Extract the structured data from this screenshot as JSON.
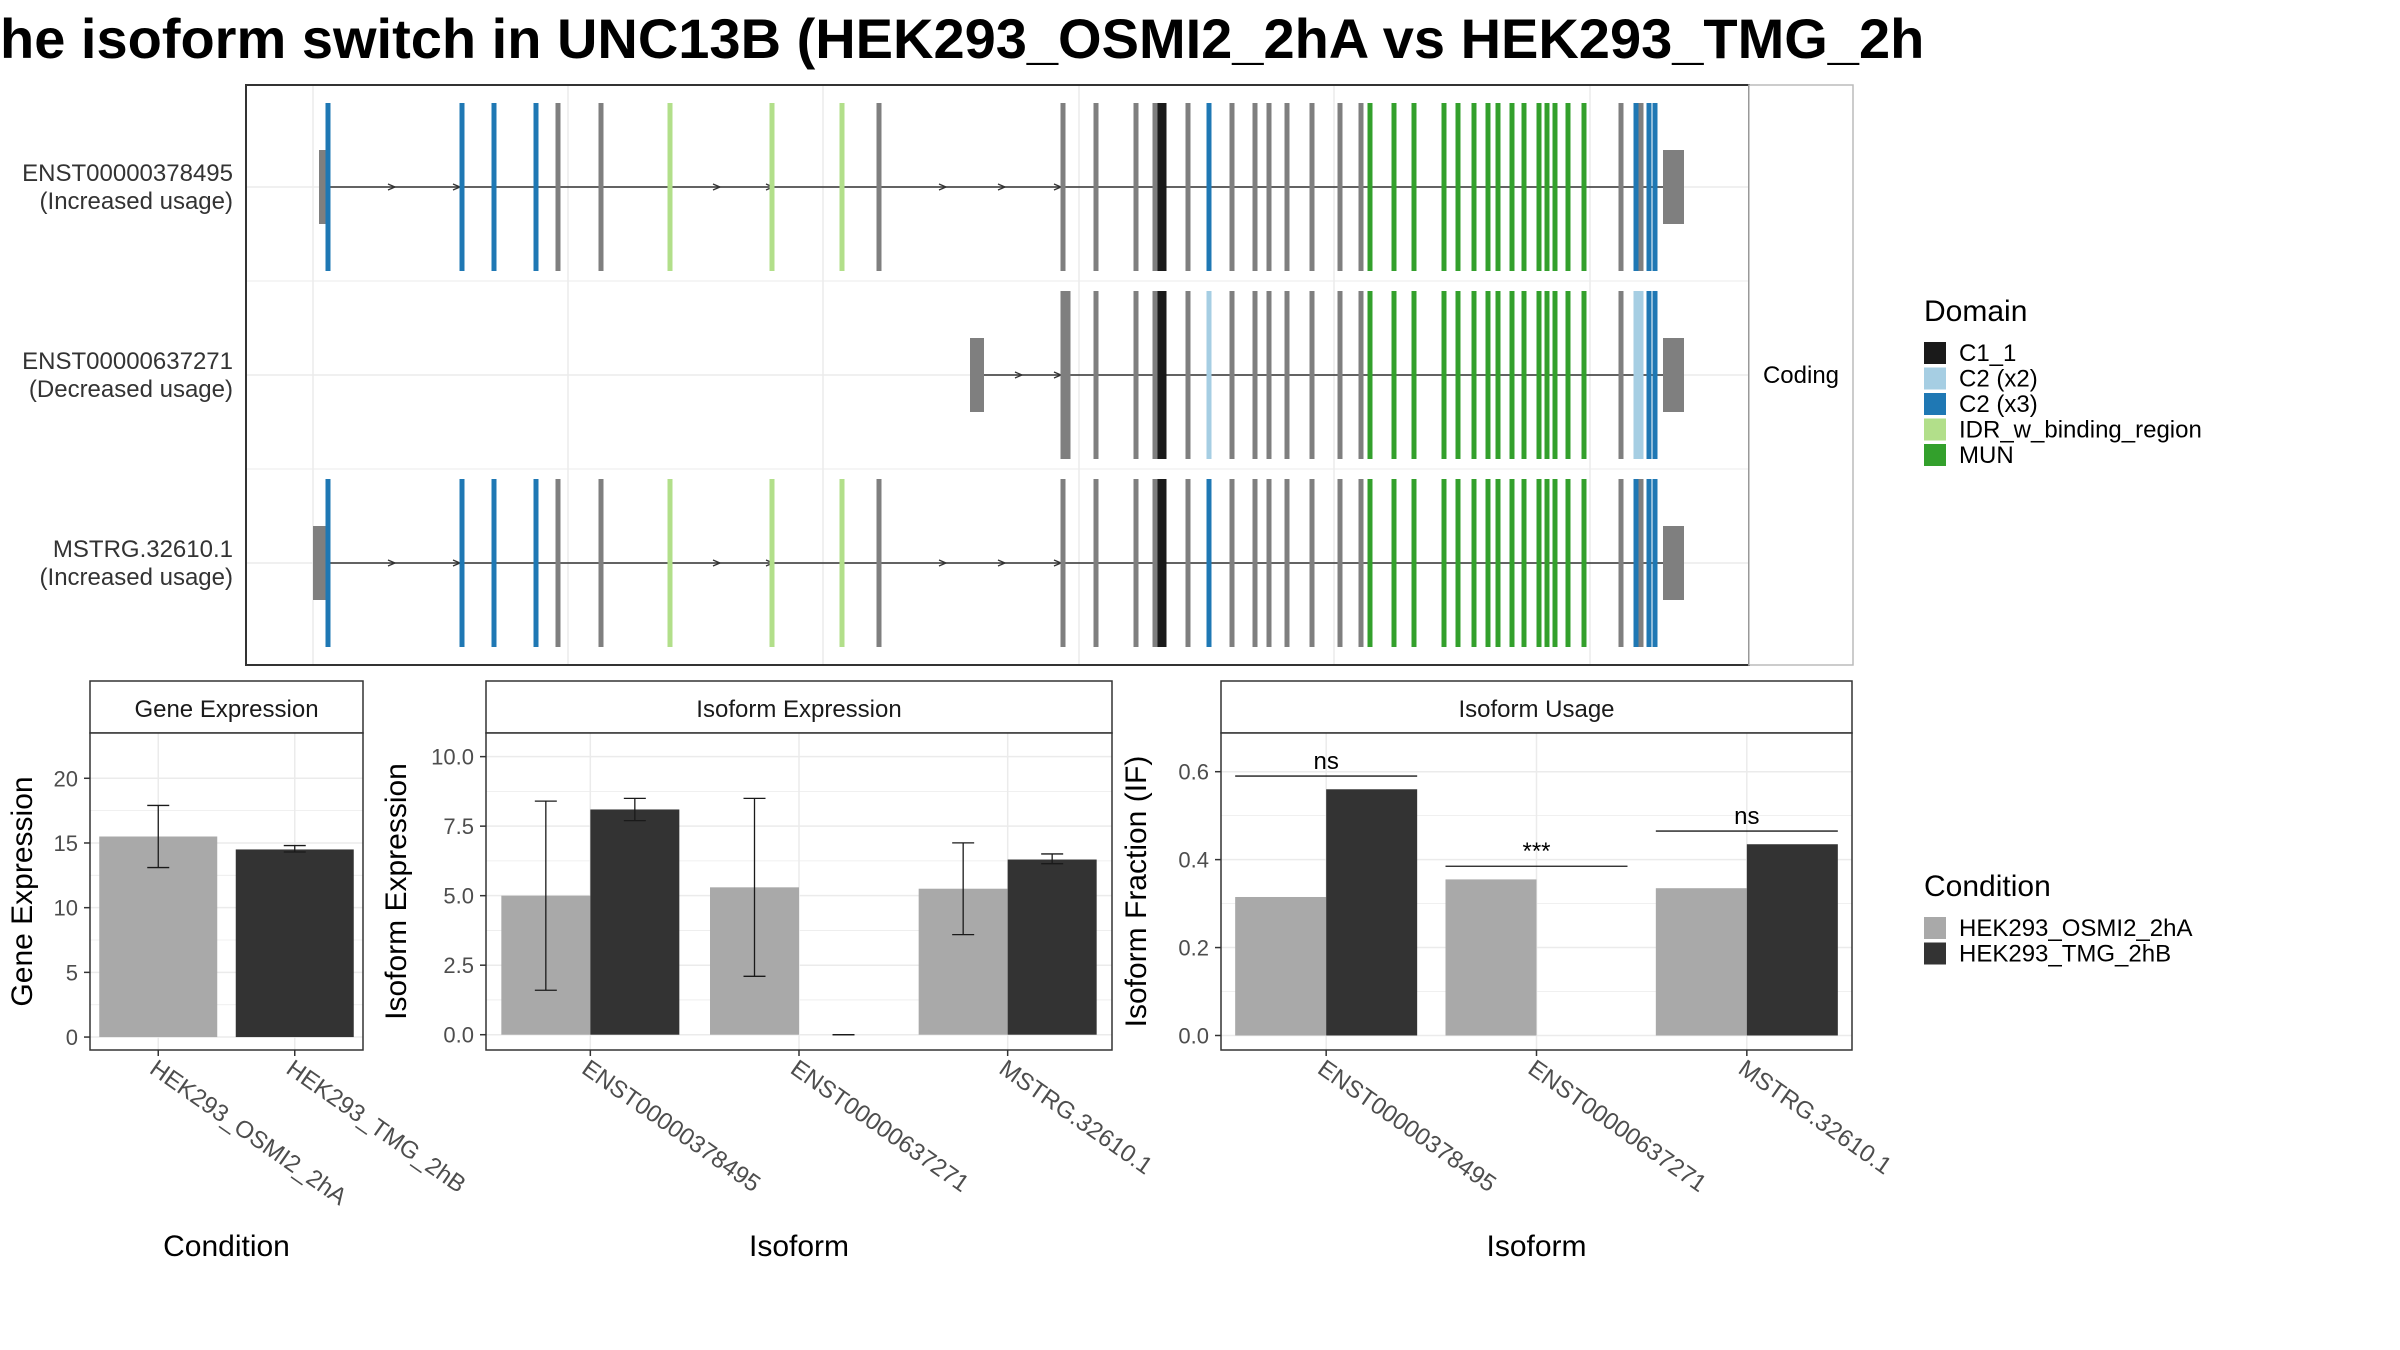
{
  "title": "he isoform switch in UNC13B (HEK293_OSMI2_2hA vs HEK293_TMG_2h",
  "colors": {
    "C1_1": "#1a1a1a",
    "C2_x2": "#a6cee3",
    "C2_x3": "#1f78b4",
    "IDR": "#b2df8a",
    "MUN": "#33a02c",
    "exon_grey": "#7f7f7f",
    "cond_A": "#a9a9a9",
    "cond_B": "#333333",
    "strip_fill": "#ffffff",
    "grid": "#ebebeb"
  },
  "structure": {
    "facet_label": "Coding",
    "isoforms": [
      {
        "name": "ENST00000378495",
        "usage": "(Increased usage)"
      },
      {
        "name": "ENST00000637271",
        "usage": "(Decreased usage)"
      },
      {
        "name": "MSTRG.32610.1",
        "usage": "(Increased usage)"
      }
    ]
  },
  "legend_domain": {
    "title": "Domain",
    "items": [
      {
        "label": "C1_1",
        "color_key": "C1_1"
      },
      {
        "label": "C2 (x2)",
        "color_key": "C2_x2"
      },
      {
        "label": "C2 (x3)",
        "color_key": "C2_x3"
      },
      {
        "label": "IDR_w_binding_region",
        "color_key": "IDR"
      },
      {
        "label": "MUN",
        "color_key": "MUN"
      }
    ]
  },
  "legend_condition": {
    "title": "Condition",
    "items": [
      {
        "label": "HEK293_OSMI2_2hA",
        "color_key": "cond_A"
      },
      {
        "label": "HEK293_TMG_2hB",
        "color_key": "cond_B"
      }
    ]
  },
  "chart_data": [
    {
      "type": "bar",
      "strip": "Gene Expression",
      "xlabel": "Condition",
      "ylabel": "Gene Expression",
      "categories": [
        "HEK293_OSMI2_2hA",
        "HEK293_TMG_2hB"
      ],
      "values": [
        15.5,
        14.5
      ],
      "error_low": [
        13.1,
        14.3
      ],
      "error_high": [
        17.9,
        14.8
      ],
      "ylim": [
        -1,
        23.5
      ],
      "yticks": [
        "0",
        "5",
        "10",
        "15",
        "20"
      ],
      "ytick_values": [
        0,
        5,
        10,
        15,
        20
      ]
    },
    {
      "type": "bar",
      "strip": "Isoform Expression",
      "xlabel": "Isoform",
      "ylabel": "Isoform Expression",
      "categories": [
        "ENST00000378495",
        "ENST00000637271",
        "MSTRG.32610.1"
      ],
      "series": [
        {
          "name": "HEK293_OSMI2_2hA",
          "values": [
            5.0,
            5.3,
            5.25
          ],
          "error_low": [
            1.6,
            2.1,
            3.6
          ],
          "error_high": [
            8.4,
            8.5,
            6.9
          ]
        },
        {
          "name": "HEK293_TMG_2hB",
          "values": [
            8.1,
            0.0,
            6.3
          ],
          "error_low": [
            7.7,
            0.0,
            6.15
          ],
          "error_high": [
            8.5,
            0.0,
            6.5
          ]
        }
      ],
      "ylim": [
        -0.55,
        10.85
      ],
      "yticks": [
        "0.0",
        "2.5",
        "5.0",
        "7.5",
        "10.0"
      ],
      "ytick_values": [
        0,
        2.5,
        5,
        7.5,
        10
      ]
    },
    {
      "type": "bar",
      "strip": "Isoform Usage",
      "xlabel": "Isoform",
      "ylabel": "Isoform Fraction (IF)",
      "categories": [
        "ENST00000378495",
        "ENST00000637271",
        "MSTRG.32610.1"
      ],
      "series": [
        {
          "name": "HEK293_OSMI2_2hA",
          "values": [
            0.315,
            0.355,
            0.335
          ]
        },
        {
          "name": "HEK293_TMG_2hB",
          "values": [
            0.56,
            0.0,
            0.435
          ]
        }
      ],
      "significance": [
        "ns",
        "***",
        "ns"
      ],
      "sig_y": [
        0.59,
        0.385,
        0.465
      ],
      "ylim": [
        -0.033,
        0.688
      ],
      "yticks": [
        "0.0",
        "0.2",
        "0.4",
        "0.6"
      ],
      "ytick_values": [
        0,
        0.2,
        0.4,
        0.6
      ]
    }
  ]
}
